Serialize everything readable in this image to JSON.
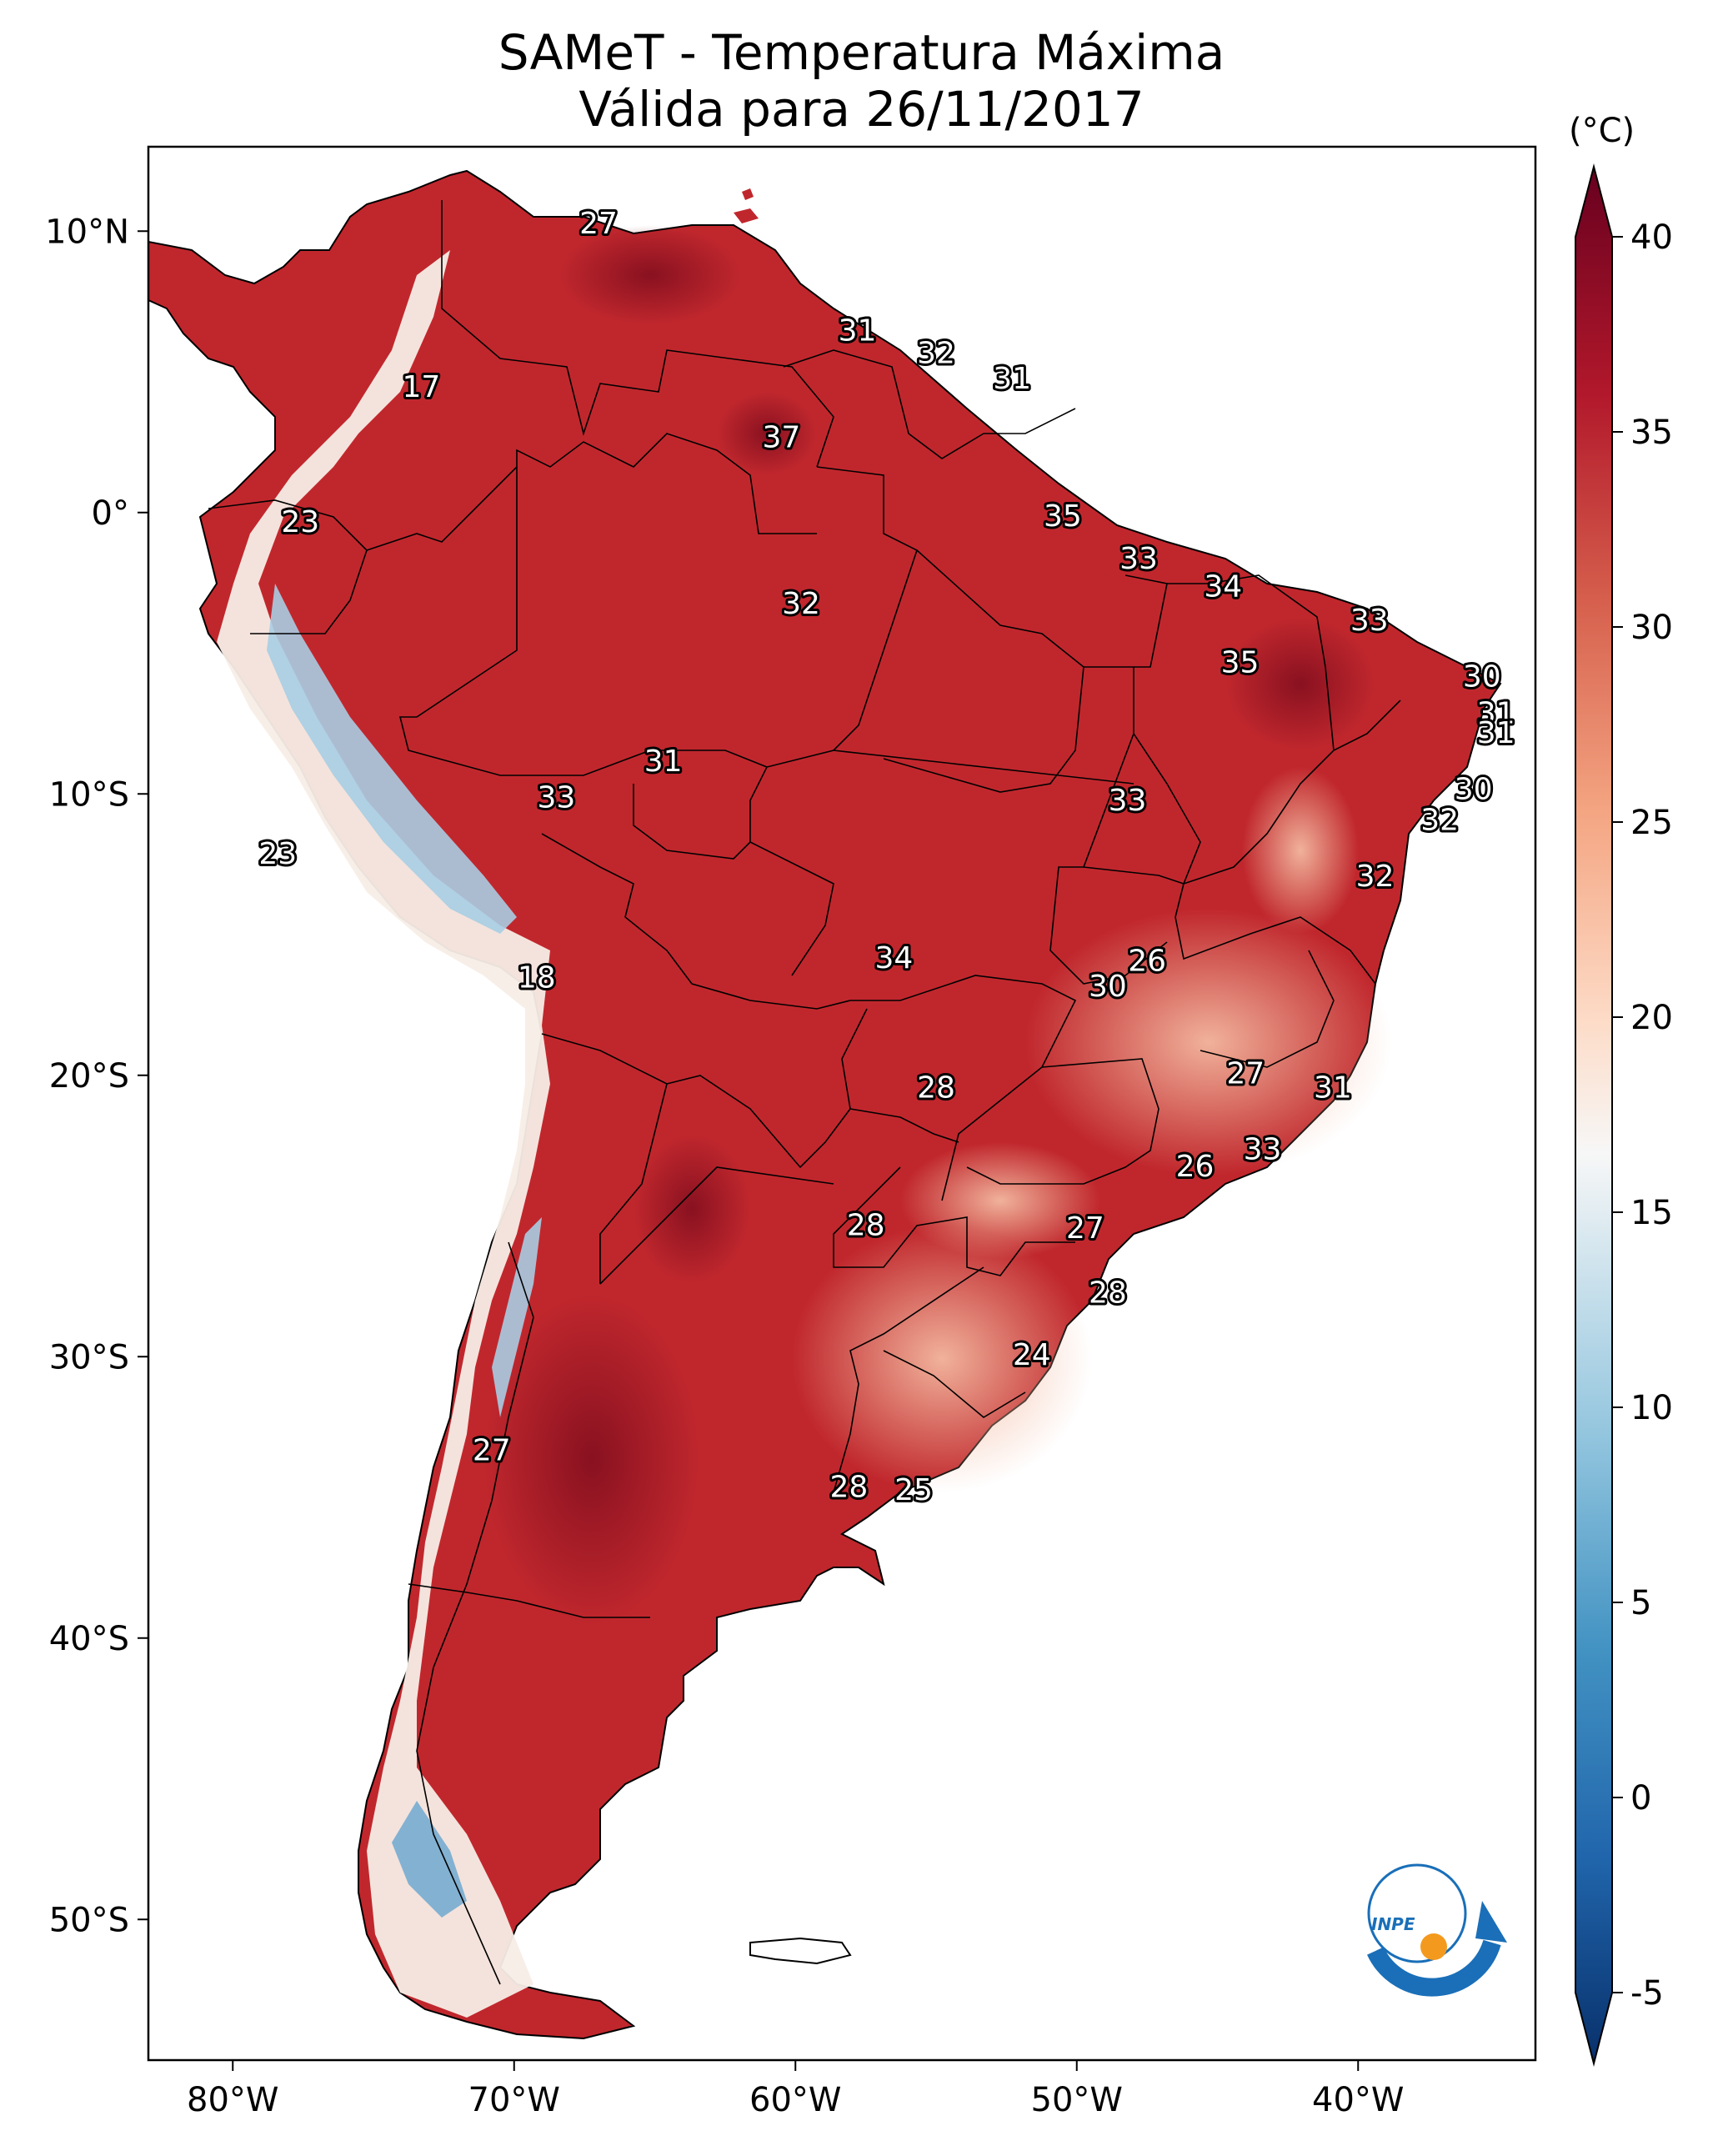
{
  "title": {
    "line1": "SAMeT - Temperatura Máxima",
    "line2": "Válida para 26/11/2017"
  },
  "colorbar": {
    "unit": "(°C)",
    "ticks": [
      "-5",
      "0",
      "5",
      "10",
      "15",
      "20",
      "25",
      "30",
      "35",
      "40"
    ],
    "range": [
      -5,
      40
    ],
    "colors": [
      "#08306b",
      "#2166ac",
      "#4393c3",
      "#92c5de",
      "#f7f7f7",
      "#fddbc7",
      "#f4a582",
      "#d6604d",
      "#b2182b",
      "#67001f"
    ]
  },
  "axes": {
    "lon_ticks": [
      "80°W",
      "70°W",
      "60°W",
      "50°W",
      "40°W"
    ],
    "lat_ticks": [
      "10°N",
      "0°",
      "10°S",
      "20°S",
      "30°S",
      "40°S",
      "50°S"
    ],
    "lon_values": [
      -80,
      -70,
      -60,
      -50,
      -40
    ],
    "lat_values": [
      10,
      0,
      -10,
      -20,
      -30,
      -40,
      -50
    ]
  },
  "map": {
    "land_hot": "#c0272d",
    "land_warm": "#e8836a",
    "land_cool": "#f6e1d6",
    "andes_cold": "#a9cde3",
    "ocean": "#ffffff"
  },
  "temperature_labels": [
    {
      "lon": -67,
      "lat": 10.3,
      "value": "27"
    },
    {
      "lon": -73.3,
      "lat": 4.5,
      "value": "17"
    },
    {
      "lon": -57.8,
      "lat": 6.5,
      "value": "31"
    },
    {
      "lon": -55,
      "lat": 5.7,
      "value": "32"
    },
    {
      "lon": -52.3,
      "lat": 4.8,
      "value": "31"
    },
    {
      "lon": -60.5,
      "lat": 2.7,
      "value": "37"
    },
    {
      "lon": -77.6,
      "lat": -0.3,
      "value": "23"
    },
    {
      "lon": -50.5,
      "lat": -0.1,
      "value": "35"
    },
    {
      "lon": -47.8,
      "lat": -1.6,
      "value": "33"
    },
    {
      "lon": -44.8,
      "lat": -2.6,
      "value": "34"
    },
    {
      "lon": -59.8,
      "lat": -3.2,
      "value": "32"
    },
    {
      "lon": -39.6,
      "lat": -3.8,
      "value": "33"
    },
    {
      "lon": -44.2,
      "lat": -5.3,
      "value": "35"
    },
    {
      "lon": -35.6,
      "lat": -5.8,
      "value": "30"
    },
    {
      "lon": -35.1,
      "lat": -7.1,
      "value": "31"
    },
    {
      "lon": -35.1,
      "lat": -7.8,
      "value": "31"
    },
    {
      "lon": -64.7,
      "lat": -8.8,
      "value": "31"
    },
    {
      "lon": -68.5,
      "lat": -10.1,
      "value": "33"
    },
    {
      "lon": -48.2,
      "lat": -10.2,
      "value": "33"
    },
    {
      "lon": -35.9,
      "lat": -9.8,
      "value": "30"
    },
    {
      "lon": -37.1,
      "lat": -10.9,
      "value": "32"
    },
    {
      "lon": -78.4,
      "lat": -12.1,
      "value": "23"
    },
    {
      "lon": -39.4,
      "lat": -12.9,
      "value": "32"
    },
    {
      "lon": -56.5,
      "lat": -15.8,
      "value": "34"
    },
    {
      "lon": -47.5,
      "lat": -15.9,
      "value": "26"
    },
    {
      "lon": -48.9,
      "lat": -16.8,
      "value": "30"
    },
    {
      "lon": -69.2,
      "lat": -16.5,
      "value": "18"
    },
    {
      "lon": -44,
      "lat": -19.9,
      "value": "27"
    },
    {
      "lon": -55,
      "lat": -20.4,
      "value": "28"
    },
    {
      "lon": -40.9,
      "lat": -20.4,
      "value": "31"
    },
    {
      "lon": -43.4,
      "lat": -22.6,
      "value": "33"
    },
    {
      "lon": -45.8,
      "lat": -23.2,
      "value": "26"
    },
    {
      "lon": -57.5,
      "lat": -25.3,
      "value": "28"
    },
    {
      "lon": -49.7,
      "lat": -25.4,
      "value": "27"
    },
    {
      "lon": -48.9,
      "lat": -27.7,
      "value": "28"
    },
    {
      "lon": -51.6,
      "lat": -29.9,
      "value": "24"
    },
    {
      "lon": -70.8,
      "lat": -33.3,
      "value": "27"
    },
    {
      "lon": -58.1,
      "lat": -34.6,
      "value": "28"
    },
    {
      "lon": -55.8,
      "lat": -34.7,
      "value": "25"
    }
  ],
  "logo": {
    "text": "INPE"
  }
}
